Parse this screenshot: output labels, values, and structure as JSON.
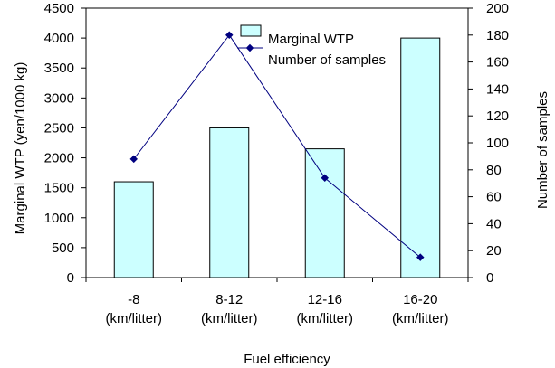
{
  "chart_data": {
    "type": "bar",
    "categories": [
      [
        "-8",
        "(km/litter)"
      ],
      [
        "8-12",
        "(km/litter)"
      ],
      [
        "12-16",
        "(km/litter)"
      ],
      [
        "16-20",
        "(km/litter)"
      ]
    ],
    "xlabel": "Fuel efficiency",
    "y_left": {
      "label": "Marginal WTP (yen/1000 kg)",
      "range": [
        0,
        4500
      ],
      "ticks": [
        0,
        500,
        1000,
        1500,
        2000,
        2500,
        3000,
        3500,
        4000,
        4500
      ]
    },
    "y_right": {
      "label": "Number of samples",
      "range": [
        0,
        200
      ],
      "ticks": [
        0,
        20,
        40,
        60,
        80,
        100,
        120,
        140,
        160,
        180,
        200
      ]
    },
    "series": [
      {
        "name": "Marginal WTP",
        "type": "bar",
        "axis": "left",
        "values": [
          1600,
          2500,
          2150,
          4000
        ],
        "color": "#ccffff",
        "edge_color": "#000000"
      },
      {
        "name": "Number of samples",
        "type": "line",
        "axis": "right",
        "values": [
          88,
          180,
          74,
          15
        ],
        "color": "#000080"
      }
    ],
    "legend": "top-center",
    "grid": false
  }
}
